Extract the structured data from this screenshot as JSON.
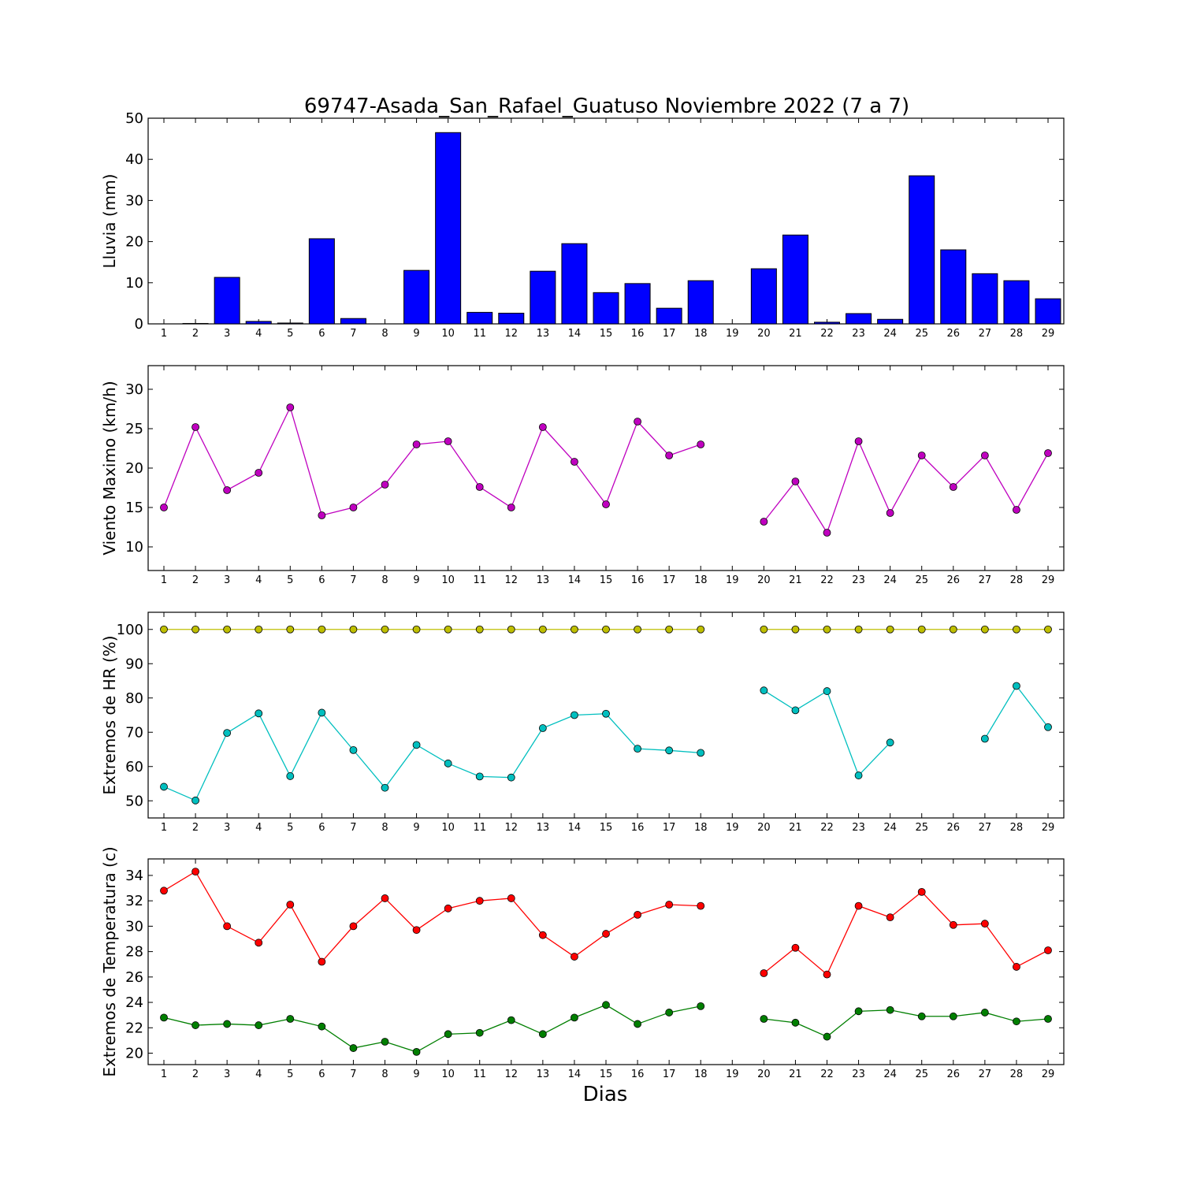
{
  "chart_data": {
    "type": "multi-panel",
    "title": "69747-Asada_San_Rafael_Guatuso Noviembre 2022  (7 a 7)",
    "xlabel": "Dias",
    "days": [
      1,
      2,
      3,
      4,
      5,
      6,
      7,
      8,
      9,
      10,
      11,
      12,
      13,
      14,
      15,
      16,
      17,
      18,
      19,
      20,
      21,
      22,
      23,
      24,
      25,
      26,
      27,
      28,
      29
    ],
    "panels": [
      {
        "kind": "bar",
        "ylabel": "Lluvia (mm)",
        "ylim": [
          0,
          50
        ],
        "yticks": [
          0,
          10,
          20,
          30,
          40,
          50
        ],
        "series": [
          {
            "color": "#0000ff",
            "values": [
              0,
              0.1,
              11.3,
              0.6,
              0.2,
              20.7,
              1.3,
              0,
              13.0,
              46.5,
              2.8,
              2.6,
              12.8,
              19.5,
              7.6,
              9.8,
              3.8,
              10.5,
              0,
              13.4,
              21.6,
              0.4,
              2.5,
              1.1,
              36.0,
              18.0,
              12.2,
              10.5,
              6.1
            ]
          }
        ]
      },
      {
        "kind": "line",
        "ylabel": "Viento Maximo (km/h)",
        "ylim": [
          7,
          33
        ],
        "yticks": [
          10,
          15,
          20,
          25,
          30
        ],
        "series": [
          {
            "color": "#bf00bf",
            "values": [
              15.0,
              25.2,
              17.2,
              19.4,
              27.7,
              14.0,
              15.0,
              17.9,
              23.0,
              23.4,
              17.6,
              15.0,
              25.2,
              20.8,
              15.4,
              25.9,
              21.6,
              23.0,
              null,
              13.2,
              18.3,
              11.8,
              23.4,
              14.3,
              21.6,
              17.6,
              21.6,
              14.7,
              21.9
            ]
          }
        ]
      },
      {
        "kind": "line",
        "ylabel": "Extremos de HR (%)",
        "ylim": [
          45,
          105
        ],
        "yticks": [
          50,
          60,
          70,
          80,
          90,
          100
        ],
        "series": [
          {
            "color": "#bfbf00",
            "values": [
              100,
              100,
              100,
              100,
              100,
              100,
              100,
              100,
              100,
              100,
              100,
              100,
              100,
              100,
              100,
              100,
              100,
              100,
              null,
              100,
              100,
              100,
              100,
              100,
              100,
              100,
              100,
              100,
              100
            ]
          },
          {
            "color": "#00bfbf",
            "values": [
              54.1,
              50.1,
              69.8,
              75.5,
              57.2,
              75.7,
              64.8,
              53.8,
              66.3,
              60.9,
              57.1,
              56.8,
              71.2,
              75.0,
              75.4,
              65.2,
              64.7,
              64.0,
              null,
              82.2,
              76.4,
              82.0,
              57.4,
              67.0,
              null,
              null,
              68.1,
              83.5,
              71.5
            ]
          }
        ]
      },
      {
        "kind": "line",
        "ylabel": "Extremos de Temperatura (c)",
        "ylim": [
          19.1,
          35.3
        ],
        "yticks": [
          20,
          22,
          24,
          26,
          28,
          30,
          32,
          34
        ],
        "series": [
          {
            "color": "#ff0000",
            "values": [
              32.8,
              34.3,
              30.0,
              28.7,
              31.7,
              27.2,
              30.0,
              32.2,
              29.7,
              31.4,
              32.0,
              32.2,
              29.3,
              27.6,
              29.4,
              30.9,
              31.7,
              31.6,
              null,
              26.3,
              28.3,
              26.2,
              31.6,
              30.7,
              32.7,
              30.1,
              30.2,
              26.8,
              28.1
            ]
          },
          {
            "color": "#007f00",
            "values": [
              22.8,
              22.2,
              22.3,
              22.2,
              22.7,
              22.1,
              20.4,
              20.9,
              20.1,
              21.5,
              21.6,
              22.6,
              21.5,
              22.8,
              23.8,
              22.3,
              23.2,
              23.7,
              null,
              22.7,
              22.4,
              21.3,
              23.3,
              23.4,
              22.9,
              22.9,
              23.2,
              22.5,
              22.7
            ]
          }
        ]
      }
    ]
  }
}
